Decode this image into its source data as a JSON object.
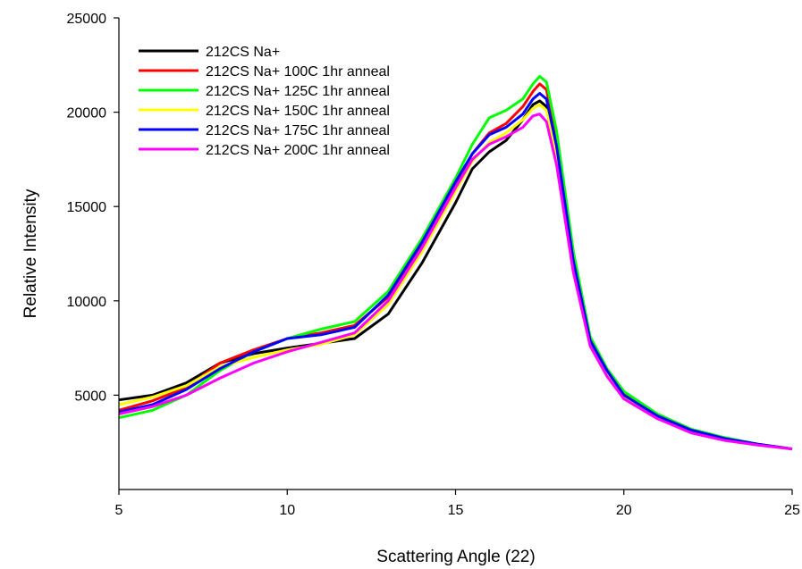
{
  "chart_data": {
    "type": "line",
    "title": "",
    "xlabel": "Scattering Angle (22)",
    "ylabel": "Relative Intensity",
    "xlim": [
      5,
      25
    ],
    "ylim": [
      0,
      25000
    ],
    "xticks": [
      5,
      10,
      15,
      20,
      25
    ],
    "yticks": [
      5000,
      10000,
      15000,
      20000,
      25000
    ],
    "grid": false,
    "legend_position": "top-left",
    "series": [
      {
        "name": "212CS Na+",
        "color": "#000000",
        "points": [
          [
            5,
            4750
          ],
          [
            6,
            5000
          ],
          [
            7,
            5650
          ],
          [
            8,
            6700
          ],
          [
            9,
            7200
          ],
          [
            10,
            7500
          ],
          [
            11,
            7750
          ],
          [
            12,
            8000
          ],
          [
            13,
            9300
          ],
          [
            14,
            12000
          ],
          [
            15,
            15200
          ],
          [
            15.5,
            17000
          ],
          [
            16,
            17900
          ],
          [
            16.5,
            18500
          ],
          [
            17,
            19600
          ],
          [
            17.3,
            20400
          ],
          [
            17.5,
            20600
          ],
          [
            17.7,
            20300
          ],
          [
            18,
            18000
          ],
          [
            18.5,
            12000
          ],
          [
            19,
            7800
          ],
          [
            19.5,
            6200
          ],
          [
            20,
            5000
          ],
          [
            21,
            3900
          ],
          [
            22,
            3100
          ],
          [
            23,
            2700
          ],
          [
            24,
            2400
          ],
          [
            25,
            2150
          ]
        ]
      },
      {
        "name": "212CS Na+ 100C 1hr anneal",
        "color": "#ff0000",
        "points": [
          [
            5,
            4200
          ],
          [
            6,
            4700
          ],
          [
            7,
            5400
          ],
          [
            8,
            6700
          ],
          [
            9,
            7400
          ],
          [
            10,
            8000
          ],
          [
            11,
            8300
          ],
          [
            12,
            8700
          ],
          [
            13,
            10200
          ],
          [
            14,
            13000
          ],
          [
            15,
            16200
          ],
          [
            15.5,
            17800
          ],
          [
            16,
            18900
          ],
          [
            16.5,
            19400
          ],
          [
            17,
            20300
          ],
          [
            17.3,
            21100
          ],
          [
            17.5,
            21500
          ],
          [
            17.7,
            21200
          ],
          [
            18,
            18600
          ],
          [
            18.5,
            12300
          ],
          [
            19,
            8000
          ],
          [
            19.5,
            6300
          ],
          [
            20,
            5100
          ],
          [
            21,
            3900
          ],
          [
            22,
            3150
          ],
          [
            23,
            2700
          ],
          [
            24,
            2400
          ],
          [
            25,
            2150
          ]
        ]
      },
      {
        "name": "212CS Na+ 125C 1hr anneal",
        "color": "#00ff00",
        "points": [
          [
            5,
            3800
          ],
          [
            6,
            4200
          ],
          [
            7,
            5000
          ],
          [
            8,
            6300
          ],
          [
            9,
            7300
          ],
          [
            10,
            8000
          ],
          [
            11,
            8500
          ],
          [
            12,
            8900
          ],
          [
            13,
            10500
          ],
          [
            14,
            13300
          ],
          [
            15,
            16500
          ],
          [
            15.5,
            18300
          ],
          [
            16,
            19700
          ],
          [
            16.5,
            20100
          ],
          [
            17,
            20700
          ],
          [
            17.3,
            21500
          ],
          [
            17.5,
            21900
          ],
          [
            17.7,
            21600
          ],
          [
            18,
            19000
          ],
          [
            18.5,
            12600
          ],
          [
            19,
            8100
          ],
          [
            19.5,
            6400
          ],
          [
            20,
            5200
          ],
          [
            21,
            4000
          ],
          [
            22,
            3200
          ],
          [
            23,
            2750
          ],
          [
            24,
            2400
          ],
          [
            25,
            2150
          ]
        ]
      },
      {
        "name": "212CS Na+ 150C 1hr anneal",
        "color": "#ffff00",
        "points": [
          [
            5,
            4500
          ],
          [
            6,
            4900
          ],
          [
            7,
            5500
          ],
          [
            8,
            6500
          ],
          [
            9,
            7000
          ],
          [
            10,
            7400
          ],
          [
            11,
            7700
          ],
          [
            12,
            8200
          ],
          [
            13,
            9800
          ],
          [
            14,
            12600
          ],
          [
            15,
            15800
          ],
          [
            15.5,
            17400
          ],
          [
            16,
            18400
          ],
          [
            16.5,
            18900
          ],
          [
            17,
            19600
          ],
          [
            17.3,
            20200
          ],
          [
            17.5,
            20400
          ],
          [
            17.7,
            20100
          ],
          [
            18,
            17800
          ],
          [
            18.5,
            11800
          ],
          [
            19,
            7700
          ],
          [
            19.5,
            6100
          ],
          [
            20,
            4900
          ],
          [
            21,
            3800
          ],
          [
            22,
            3050
          ],
          [
            23,
            2650
          ],
          [
            24,
            2350
          ],
          [
            25,
            2150
          ]
        ]
      },
      {
        "name": "212CS Na+ 175C 1hr anneal",
        "color": "#0000ff",
        "points": [
          [
            5,
            4100
          ],
          [
            6,
            4500
          ],
          [
            7,
            5300
          ],
          [
            8,
            6400
          ],
          [
            9,
            7300
          ],
          [
            10,
            8000
          ],
          [
            11,
            8200
          ],
          [
            12,
            8600
          ],
          [
            13,
            10300
          ],
          [
            14,
            13100
          ],
          [
            15,
            16300
          ],
          [
            15.5,
            17800
          ],
          [
            16,
            18800
          ],
          [
            16.5,
            19200
          ],
          [
            17,
            19900
          ],
          [
            17.3,
            20700
          ],
          [
            17.5,
            21000
          ],
          [
            17.7,
            20700
          ],
          [
            18,
            18200
          ],
          [
            18.5,
            12100
          ],
          [
            19,
            7900
          ],
          [
            19.5,
            6300
          ],
          [
            20,
            5000
          ],
          [
            21,
            3900
          ],
          [
            22,
            3150
          ],
          [
            23,
            2700
          ],
          [
            24,
            2400
          ],
          [
            25,
            2150
          ]
        ]
      },
      {
        "name": "212CS Na+ 200C 1hr anneal",
        "color": "#ff00ff",
        "points": [
          [
            5,
            4000
          ],
          [
            6,
            4400
          ],
          [
            7,
            5000
          ],
          [
            8,
            5900
          ],
          [
            9,
            6700
          ],
          [
            10,
            7300
          ],
          [
            11,
            7800
          ],
          [
            12,
            8300
          ],
          [
            13,
            10000
          ],
          [
            14,
            12800
          ],
          [
            15,
            16000
          ],
          [
            15.5,
            17500
          ],
          [
            16,
            18300
          ],
          [
            16.5,
            18700
          ],
          [
            17,
            19200
          ],
          [
            17.3,
            19800
          ],
          [
            17.5,
            19900
          ],
          [
            17.7,
            19500
          ],
          [
            18,
            17200
          ],
          [
            18.5,
            11500
          ],
          [
            19,
            7600
          ],
          [
            19.5,
            6000
          ],
          [
            20,
            4800
          ],
          [
            21,
            3750
          ],
          [
            22,
            3000
          ],
          [
            23,
            2600
          ],
          [
            24,
            2350
          ],
          [
            25,
            2150
          ]
        ]
      }
    ]
  }
}
